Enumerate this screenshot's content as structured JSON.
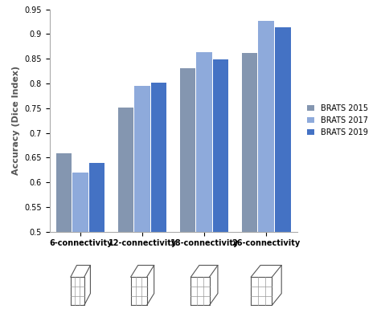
{
  "chart_data": {
    "type": "bar",
    "y_label": "Accuracy (Dice Index)",
    "categories": [
      "6-connectivity",
      "12-connectivity",
      "18-connectivity",
      "26-connectivity"
    ],
    "series": [
      {
        "name": "BRATS 2015",
        "color": "#8496b0",
        "values": [
          0.658,
          0.752,
          0.831,
          0.862
        ]
      },
      {
        "name": "BRATS 2017",
        "color": "#8eaadb",
        "values": [
          0.619,
          0.795,
          0.864,
          0.926
        ]
      },
      {
        "name": "BRATS 2019",
        "color": "#4472c4",
        "values": [
          0.639,
          0.801,
          0.848,
          0.913
        ]
      }
    ],
    "ylim": [
      0.5,
      0.95
    ],
    "yticks": [
      0.5,
      0.55,
      0.6,
      0.65,
      0.7,
      0.75,
      0.8,
      0.85,
      0.9,
      0.95
    ],
    "grid": false,
    "legend": "right"
  }
}
